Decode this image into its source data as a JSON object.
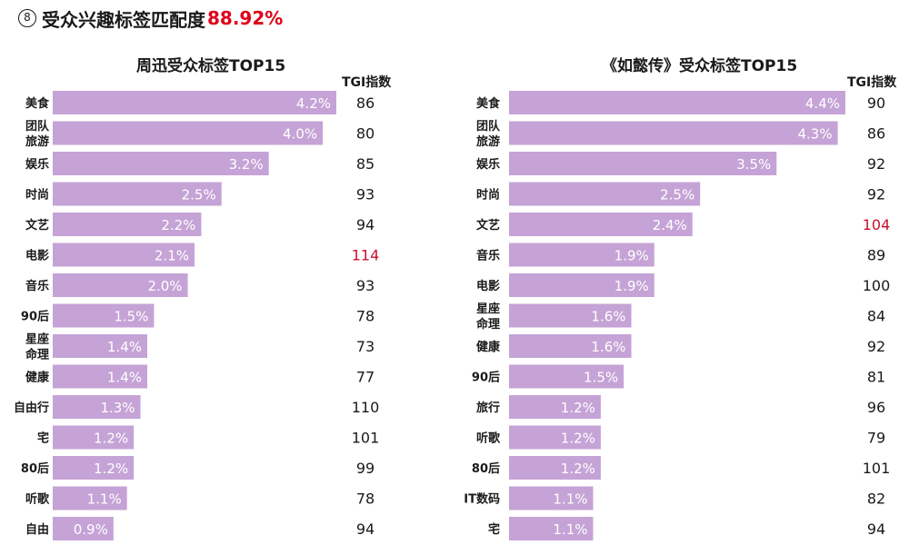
{
  "header": {
    "number": "8",
    "title": "受众兴趣标签匹配度",
    "value": "88.92%"
  },
  "tgi_header": "TGI指数",
  "colors": {
    "bar": "#c5a3d6",
    "highlight": "#c8102e",
    "title_accent": "#e0001b"
  },
  "chart_data": [
    {
      "type": "bar",
      "orientation": "horizontal",
      "title": "周迅受众标签TOP15",
      "unit": "%",
      "xlim": [
        0,
        4.2
      ],
      "categories": [
        "美食",
        "团队\n旅游",
        "娱乐",
        "时尚",
        "文艺",
        "电影",
        "音乐",
        "90后",
        "星座\n命理",
        "健康",
        "自由行",
        "宅",
        "80后",
        "听歌",
        "自由"
      ],
      "values": [
        4.2,
        4.0,
        3.2,
        2.5,
        2.2,
        2.1,
        2.0,
        1.5,
        1.4,
        1.4,
        1.3,
        1.2,
        1.2,
        1.1,
        0.9
      ],
      "value_labels": [
        "4.2%",
        "4.0%",
        "3.2%",
        "2.5%",
        "2.2%",
        "2.1%",
        "2.0%",
        "1.5%",
        "1.4%",
        "1.4%",
        "1.3%",
        "1.2%",
        "1.2%",
        "1.1%",
        "0.9%"
      ],
      "tgi": [
        86,
        80,
        85,
        93,
        94,
        114,
        93,
        78,
        73,
        77,
        110,
        101,
        99,
        78,
        94
      ],
      "tgi_highlight": [
        114
      ]
    },
    {
      "type": "bar",
      "orientation": "horizontal",
      "title": "《如懿传》受众标签TOP15",
      "unit": "%",
      "xlim": [
        0,
        4.4
      ],
      "categories": [
        "美食",
        "团队\n旅游",
        "娱乐",
        "时尚",
        "文艺",
        "音乐",
        "电影",
        "星座\n命理",
        "健康",
        "90后",
        "旅行",
        "听歌",
        "80后",
        "IT数码",
        "宅"
      ],
      "values": [
        4.4,
        4.3,
        3.5,
        2.5,
        2.4,
        1.9,
        1.9,
        1.6,
        1.6,
        1.5,
        1.2,
        1.2,
        1.2,
        1.1,
        1.1
      ],
      "value_labels": [
        "4.4%",
        "4.3%",
        "3.5%",
        "2.5%",
        "2.4%",
        "1.9%",
        "1.9%",
        "1.6%",
        "1.6%",
        "1.5%",
        "1.2%",
        "1.2%",
        "1.2%",
        "1.1%",
        "1.1%"
      ],
      "tgi": [
        90,
        86,
        92,
        92,
        104,
        89,
        100,
        84,
        92,
        81,
        96,
        79,
        101,
        82,
        94
      ],
      "tgi_highlight": [
        104
      ]
    }
  ]
}
